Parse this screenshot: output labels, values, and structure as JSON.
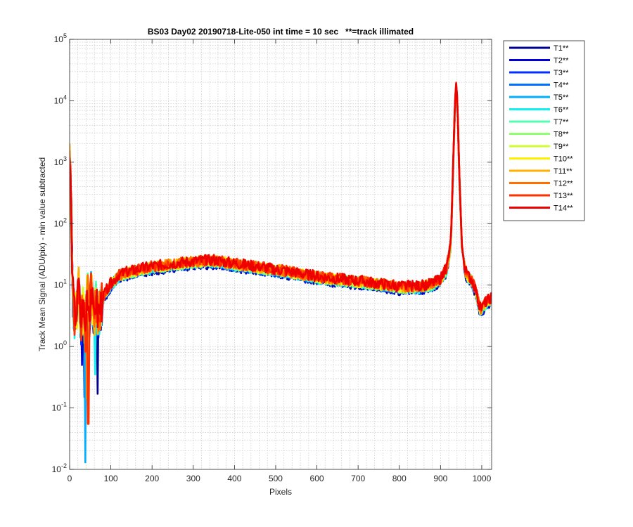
{
  "chart_data": {
    "type": "line",
    "title": "BS03 Day02 20190718-Lite-050 int time = 10 sec   **=track illimated",
    "xlabel": "Pixels",
    "ylabel": "Track Mean Signal (ADU/pix) - min value subtracted",
    "xlim": [
      0,
      1024
    ],
    "ylim": [
      0.01,
      100000
    ],
    "yscale": "log",
    "grid": "on (major and minor)",
    "legend_position": "outside-top-right",
    "x_ticks": [
      "0",
      "100",
      "200",
      "300",
      "400",
      "500",
      "600",
      "700",
      "800",
      "900",
      "1000"
    ],
    "y_ticks": [
      {
        "base": "10",
        "exp": "-2"
      },
      {
        "base": "10",
        "exp": "-1"
      },
      {
        "base": "10",
        "exp": "0"
      },
      {
        "base": "10",
        "exp": "1"
      },
      {
        "base": "10",
        "exp": "2"
      },
      {
        "base": "10",
        "exp": "3"
      },
      {
        "base": "10",
        "exp": "4"
      },
      {
        "base": "10",
        "exp": "5"
      }
    ],
    "shared_profile": {
      "x": [
        0,
        3,
        8,
        12,
        18,
        22,
        27,
        32,
        38,
        43,
        48,
        53,
        58,
        63,
        68,
        75,
        85,
        100,
        120,
        150,
        200,
        250,
        300,
        350,
        400,
        450,
        500,
        550,
        600,
        650,
        700,
        750,
        800,
        850,
        880,
        900,
        915,
        925,
        930,
        935,
        938,
        941,
        946,
        952,
        960,
        968,
        975,
        985,
        995,
        1000,
        1010,
        1024
      ],
      "y": [
        1000,
        300,
        6,
        3,
        4,
        9,
        2,
        5,
        1.5,
        9,
        3,
        10,
        2,
        6,
        3,
        4,
        7,
        10,
        14,
        16,
        19,
        21,
        23,
        24,
        21,
        19,
        17,
        15,
        13,
        12,
        11,
        10,
        9,
        9,
        10,
        12,
        18,
        45,
        600,
        9000,
        17000,
        9000,
        500,
        40,
        16,
        13,
        12,
        8,
        4,
        4,
        5,
        6
      ]
    },
    "series": [
      {
        "name": "T1**",
        "color": "#00008f",
        "scale": 0.93,
        "seed": 1,
        "dips": [
          [
            36,
            0.15
          ],
          [
            68,
            0.17
          ]
        ]
      },
      {
        "name": "T2**",
        "color": "#0000d6",
        "scale": 0.95,
        "seed": 2,
        "dips": [
          [
            30,
            0.5
          ]
        ]
      },
      {
        "name": "T3**",
        "color": "#0030ff",
        "scale": 0.97,
        "seed": 3,
        "dips": []
      },
      {
        "name": "T4**",
        "color": "#0070ff",
        "scale": 0.98,
        "seed": 4,
        "dips": []
      },
      {
        "name": "T5**",
        "color": "#00b0ff",
        "scale": 1.0,
        "seed": 5,
        "dips": [
          [
            38,
            0.013
          ]
        ],
        "start": 1600
      },
      {
        "name": "T6**",
        "color": "#10f0ef",
        "scale": 0.99,
        "seed": 6,
        "dips": [
          [
            62,
            0.35
          ]
        ]
      },
      {
        "name": "T7**",
        "color": "#50ffaf",
        "scale": 1.0,
        "seed": 7,
        "dips": []
      },
      {
        "name": "T8**",
        "color": "#90ff6f",
        "scale": 1.01,
        "seed": 8,
        "dips": []
      },
      {
        "name": "T9**",
        "color": "#d0ff2f",
        "scale": 1.02,
        "seed": 9,
        "dips": []
      },
      {
        "name": "T10**",
        "color": "#ffef00",
        "scale": 1.03,
        "seed": 10,
        "dips": []
      },
      {
        "name": "T11**",
        "color": "#ffaf00",
        "scale": 1.04,
        "seed": 11,
        "dips": [
          [
            42,
            0.14
          ]
        ]
      },
      {
        "name": "T12**",
        "color": "#ff7000",
        "scale": 1.05,
        "seed": 12,
        "dips": []
      },
      {
        "name": "T13**",
        "color": "#ff3000",
        "scale": 1.06,
        "seed": 13,
        "dips": [
          [
            45,
            0.055
          ]
        ]
      },
      {
        "name": "T14**",
        "color": "#ef0000",
        "scale": 1.07,
        "seed": 14,
        "dips": []
      }
    ]
  }
}
